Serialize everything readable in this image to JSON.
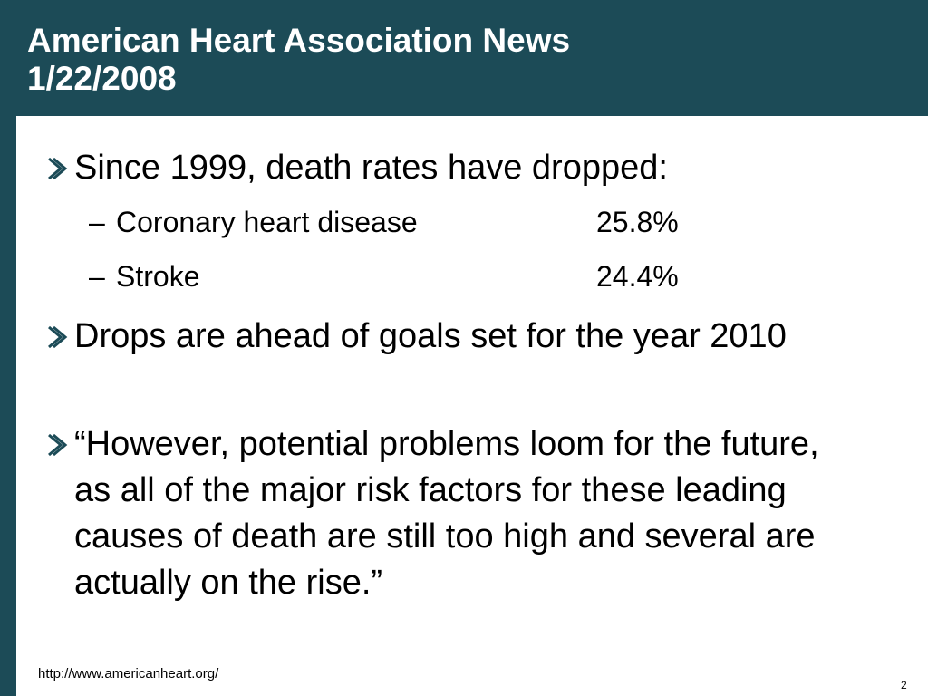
{
  "slide": {
    "title_line1": "American Heart Association News",
    "title_line2": "1/22/2008",
    "bullets": [
      {
        "icon": "arrow-bullet-icon",
        "text": "Since 1999, death rates have dropped:"
      },
      {
        "icon": "arrow-bullet-icon",
        "text": "Drops are ahead of goals set for the year 2010"
      },
      {
        "icon": "arrow-bullet-icon",
        "text": "“However, potential problems loom for the future, as all of the major risk factors for these leading causes of death are still too high and several are actually on the rise.”"
      }
    ],
    "subitems": [
      {
        "dash": "–",
        "label": "Coronary heart disease",
        "value": "25.8%"
      },
      {
        "dash": "–",
        "label": "Stroke",
        "value": "24.4%"
      }
    ],
    "footer_url": "http://www.americanheart.org/",
    "page_number": "2"
  },
  "colors": {
    "header_background": "#1c4b57",
    "title_text": "#ffffff",
    "bullet_icon": "#1c4b57"
  }
}
